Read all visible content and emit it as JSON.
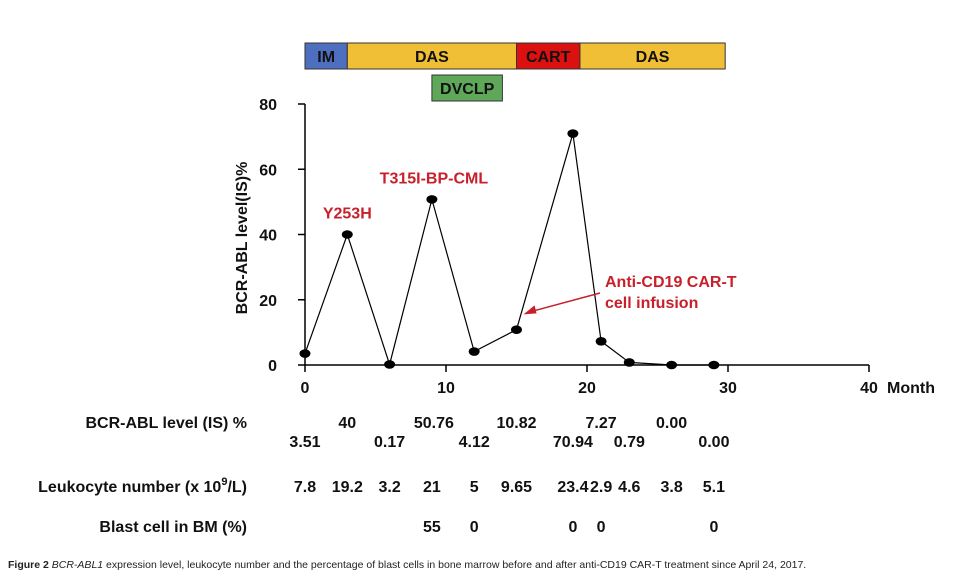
{
  "chart_data": {
    "type": "line",
    "ylabel": "BCR-ABL level(IS)%",
    "xlabel": "Month",
    "xlim": [
      0,
      40
    ],
    "ylim": [
      0,
      80
    ],
    "x_ticks": [
      0,
      10,
      20,
      30,
      40
    ],
    "y_ticks": [
      0,
      20,
      40,
      60,
      80
    ],
    "series": [
      {
        "name": "BCR-ABL level (IS) %",
        "x": [
          0,
          3,
          6,
          9,
          12,
          15,
          19,
          21,
          23,
          26,
          29
        ],
        "y": [
          3.51,
          40,
          0.17,
          50.76,
          4.12,
          10.82,
          70.94,
          7.27,
          0.79,
          0.0,
          0.0
        ]
      }
    ],
    "treatments": [
      {
        "label": "IM",
        "start": 0,
        "end": 3,
        "row": 1,
        "color": "#4e6fc0"
      },
      {
        "label": "DAS",
        "start": 3,
        "end": 15,
        "row": 1,
        "color": "#f0bf36"
      },
      {
        "label": "CART",
        "start": 15,
        "end": 19.5,
        "row": 1,
        "color": "#dd1010"
      },
      {
        "label": "DAS",
        "start": 19.5,
        "end": 29.8,
        "row": 1,
        "color": "#f0bf36"
      },
      {
        "label": "DVCLP",
        "start": 9,
        "end": 14,
        "row": 2,
        "color": "#5fa85a"
      }
    ],
    "annotations": [
      {
        "text": "Y253H",
        "color": "#c8202a",
        "anchor_x": 3,
        "anchor_y": 40
      },
      {
        "text": "T315I-BP-CML",
        "color": "#c8202a",
        "anchor_x": 9,
        "anchor_y": 50.76
      },
      {
        "lines": [
          "Anti-CD19 CAR-T",
          "cell infusion"
        ],
        "color": "#c8202a",
        "arrow_to_x": 15.5,
        "arrow_to_y": 15.5
      }
    ]
  },
  "table": {
    "bcr_abl": {
      "label": "BCR-ABL level (IS) %",
      "upper": [
        {
          "x": 3,
          "text": "40"
        },
        {
          "x": 9,
          "text": "50.76"
        },
        {
          "x": 15,
          "text": "10.82"
        },
        {
          "x": 21,
          "text": "7.27"
        },
        {
          "x": 26,
          "text": "0.00"
        }
      ],
      "lower": [
        {
          "x": 0,
          "text": "3.51"
        },
        {
          "x": 6,
          "text": "0.17"
        },
        {
          "x": 12,
          "text": "4.12"
        },
        {
          "x": 19,
          "text": "70.94"
        },
        {
          "x": 23,
          "text": "0.79"
        },
        {
          "x": 29,
          "text": "0.00"
        }
      ]
    },
    "leukocyte": {
      "label_prefix": "Leukocyte number (x 10",
      "label_sup": "9",
      "label_suffix": "/L)",
      "values": [
        {
          "x": 0,
          "text": "7.8"
        },
        {
          "x": 3,
          "text": "19.2"
        },
        {
          "x": 6,
          "text": "3.2"
        },
        {
          "x": 9,
          "text": "21"
        },
        {
          "x": 12,
          "text": "5"
        },
        {
          "x": 15,
          "text": "9.65"
        },
        {
          "x": 19,
          "text": "23.4"
        },
        {
          "x": 21,
          "text": "2.9"
        },
        {
          "x": 23,
          "text": "4.6"
        },
        {
          "x": 26,
          "text": "3.8"
        },
        {
          "x": 29,
          "text": "5.1"
        }
      ]
    },
    "blast": {
      "label": "Blast cell in BM (%)",
      "values": [
        {
          "x": 9,
          "text": "55"
        },
        {
          "x": 12,
          "text": "0"
        },
        {
          "x": 19,
          "text": "0"
        },
        {
          "x": 21,
          "text": "0"
        },
        {
          "x": 29,
          "text": "0"
        }
      ]
    }
  },
  "caption": {
    "fig_label": "Figure 2",
    "gene": "BCR-ABL1",
    "text": " expression level, leukocyte number and the percentage of blast cells in bone marrow before and after anti-CD19 CAR-T treatment since April 24, 2017."
  }
}
